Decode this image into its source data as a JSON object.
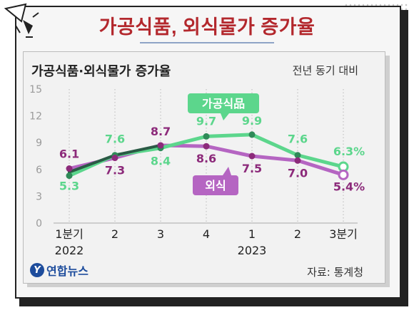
{
  "headline": "가공식품, 외식물가 증가율",
  "chart_data": {
    "type": "line",
    "title": "가공식품·외식물가 증가율",
    "unit_note": "전년 동기 대비",
    "x_ticks": [
      {
        "label": "1분기",
        "year": "2022"
      },
      {
        "label": "2",
        "year": ""
      },
      {
        "label": "3",
        "year": ""
      },
      {
        "label": "4",
        "year": ""
      },
      {
        "label": "1",
        "year": "2023"
      },
      {
        "label": "2",
        "year": ""
      },
      {
        "label": "3분기",
        "year": ""
      }
    ],
    "ylim": [
      0,
      15
    ],
    "y_ticks": [
      0,
      3,
      6,
      9,
      12,
      15
    ],
    "grid": "vertical",
    "series": [
      {
        "name": "가공식品",
        "color": "#5cd68c",
        "label_color": "#5cd68c",
        "values": [
          5.3,
          7.6,
          8.4,
          9.7,
          9.9,
          7.6,
          6.3
        ],
        "labels": [
          "5.3",
          "7.6",
          "8.4",
          "9.7",
          "9.9",
          "7.6",
          "6.3%"
        ]
      },
      {
        "name": "외식",
        "color": "#b565c2",
        "label_color": "#8c2a7a",
        "values": [
          6.1,
          7.3,
          8.7,
          8.6,
          7.5,
          7.0,
          5.4
        ],
        "labels": [
          "6.1",
          "7.3",
          "8.7",
          "8.6",
          "7.5",
          "7.0",
          "5.4%"
        ]
      }
    ],
    "overlap_color": "#2a5a45"
  },
  "source": "자료: 통계청",
  "logo": {
    "mark": "Y",
    "text": "연합뉴스"
  }
}
